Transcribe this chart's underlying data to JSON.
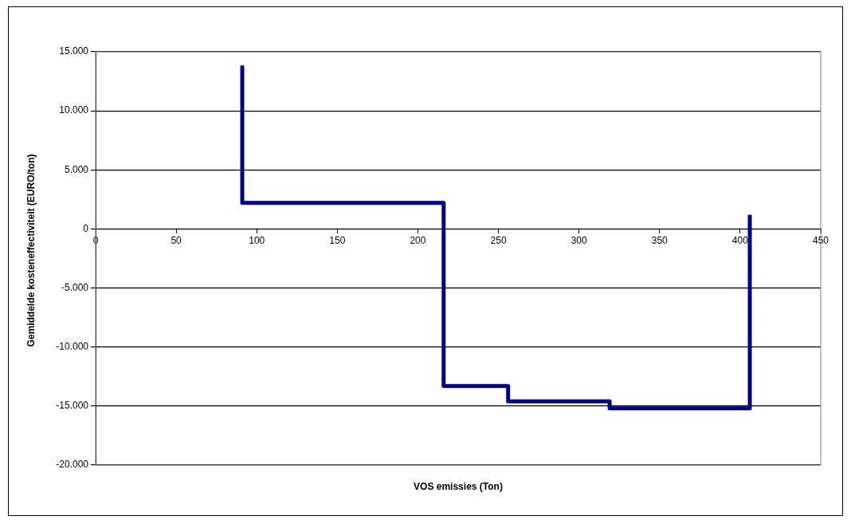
{
  "chart_data": {
    "type": "line",
    "xlabel": "VOS emissies (Ton)",
    "ylabel": "Gemiddelde kosteneffectiviteit (EURO/ton)",
    "series": [
      {
        "color": "#000080",
        "x": [
          91,
          91,
          216,
          216,
          256,
          256,
          319,
          319,
          406,
          406
        ],
        "values": [
          13700,
          2200,
          2200,
          -13300,
          -13300,
          -14600,
          -14600,
          -15200,
          -15200,
          1200
        ]
      }
    ],
    "xlim": [
      0,
      450
    ],
    "xticks": [
      0,
      50,
      100,
      150,
      200,
      250,
      300,
      350,
      400,
      450
    ],
    "ylim": [
      -20000,
      15000
    ],
    "yticks": [
      {
        "value": -20000,
        "label": "-20.000"
      },
      {
        "value": -15000,
        "label": "-15.000"
      },
      {
        "value": -10000,
        "label": "-10.000"
      },
      {
        "value": -5000,
        "label": "-5.000"
      },
      {
        "value": 0,
        "label": "0"
      },
      {
        "value": 5000,
        "label": "5.000"
      },
      {
        "value": 10000,
        "label": "10.000"
      },
      {
        "value": 15000,
        "label": "15.000"
      }
    ],
    "grid": "y",
    "legend": false,
    "marker": "none",
    "line_style": "solid"
  }
}
